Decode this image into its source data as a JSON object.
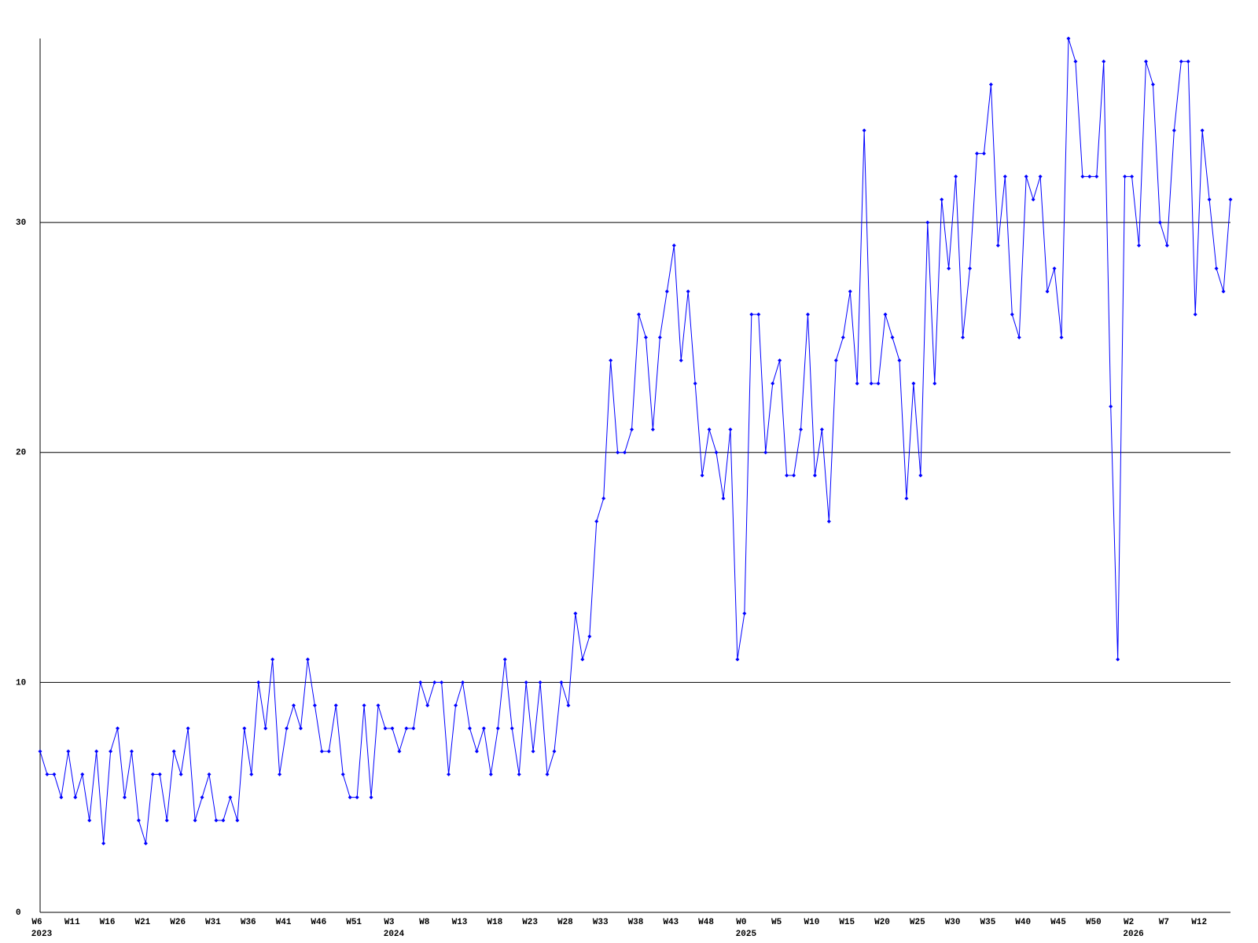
{
  "chart_data": {
    "type": "line",
    "categories": [
      "W6",
      null,
      null,
      null,
      null,
      "W11",
      null,
      null,
      null,
      null,
      "W16",
      null,
      null,
      null,
      null,
      "W21",
      null,
      null,
      null,
      null,
      "W26",
      null,
      null,
      null,
      null,
      "W31",
      null,
      null,
      null,
      null,
      "W36",
      null,
      null,
      null,
      null,
      "W41",
      null,
      null,
      null,
      null,
      "W46",
      null,
      null,
      null,
      null,
      "W51",
      null,
      null,
      null,
      null,
      "W3",
      null,
      null,
      null,
      null,
      "W8",
      null,
      null,
      null,
      null,
      "W13",
      null,
      null,
      null,
      null,
      "W18",
      null,
      null,
      null,
      null,
      "W23",
      null,
      null,
      null,
      null,
      "W28",
      null,
      null,
      null,
      null,
      "W33",
      null,
      null,
      null,
      null,
      "W38",
      null,
      null,
      null,
      null,
      "W43",
      null,
      null,
      null,
      null,
      "W48",
      null,
      null,
      null,
      null,
      "W0",
      null,
      null,
      null,
      null,
      "W5",
      null,
      null,
      null,
      null,
      "W10",
      null,
      null,
      null,
      null,
      "W15",
      null,
      null,
      null,
      null,
      "W20",
      null,
      null,
      null,
      null,
      "W25",
      null,
      null,
      null,
      null,
      "W30",
      null,
      null,
      null,
      null,
      "W35",
      null,
      null,
      null,
      null,
      "W40",
      null,
      null,
      null,
      null,
      "W45",
      null,
      null,
      null,
      null,
      "W50",
      null,
      null,
      null,
      null,
      "W2",
      null,
      null,
      null,
      null,
      "W7",
      null,
      null,
      null,
      null,
      "W12",
      null,
      null,
      null,
      null
    ],
    "year_labels": [
      "2023",
      null,
      null,
      null,
      null,
      null,
      null,
      null,
      null,
      null,
      null,
      null,
      null,
      null,
      null,
      null,
      null,
      null,
      null,
      null,
      null,
      null,
      null,
      null,
      null,
      null,
      null,
      null,
      null,
      null,
      null,
      null,
      null,
      null,
      null,
      null,
      null,
      null,
      null,
      null,
      null,
      null,
      null,
      null,
      null,
      null,
      null,
      null,
      null,
      null,
      "2024",
      null,
      null,
      null,
      null,
      null,
      null,
      null,
      null,
      null,
      null,
      null,
      null,
      null,
      null,
      null,
      null,
      null,
      null,
      null,
      null,
      null,
      null,
      null,
      null,
      null,
      null,
      null,
      null,
      null,
      null,
      null,
      null,
      null,
      null,
      null,
      null,
      null,
      null,
      null,
      null,
      null,
      null,
      null,
      null,
      null,
      null,
      null,
      null,
      null,
      "2025",
      null,
      null,
      null,
      null,
      null,
      null,
      null,
      null,
      null,
      null,
      null,
      null,
      null,
      null,
      null,
      null,
      null,
      null,
      null,
      null,
      null,
      null,
      null,
      null,
      null,
      null,
      null,
      null,
      null,
      null,
      null,
      null,
      null,
      null,
      null,
      null,
      null,
      null,
      null,
      null,
      null,
      null,
      null,
      null,
      null,
      null,
      null,
      null,
      null,
      null,
      null,
      null,
      null,
      null,
      "2026",
      null,
      null,
      null,
      null,
      null,
      null,
      null,
      null,
      null,
      null,
      null,
      null,
      null,
      null
    ],
    "series": [
      {
        "color": "#0000ff",
        "values": [
          7,
          6,
          6,
          5,
          7,
          5,
          6,
          4,
          7,
          3,
          7,
          8,
          5,
          7,
          4,
          3,
          6,
          6,
          4,
          7,
          6,
          8,
          4,
          5,
          6,
          4,
          4,
          5,
          4,
          8,
          6,
          10,
          8,
          11,
          6,
          8,
          9,
          8,
          11,
          9,
          7,
          7,
          9,
          6,
          5,
          5,
          9,
          5,
          9,
          8,
          8,
          7,
          8,
          8,
          10,
          9,
          10,
          10,
          6,
          9,
          10,
          8,
          7,
          8,
          6,
          8,
          11,
          8,
          6,
          10,
          7,
          10,
          6,
          7,
          10,
          9,
          13,
          11,
          12,
          17,
          18,
          24,
          20,
          20,
          21,
          26,
          25,
          21,
          25,
          27,
          29,
          24,
          27,
          23,
          19,
          21,
          20,
          18,
          21,
          11,
          13,
          26,
          26,
          20,
          23,
          24,
          19,
          19,
          21,
          26,
          19,
          21,
          17,
          24,
          25,
          27,
          23,
          34,
          23,
          23,
          26,
          25,
          24,
          18,
          23,
          19,
          30,
          23,
          31,
          28,
          32,
          25,
          28,
          33,
          33,
          36,
          29,
          32,
          26,
          25,
          32,
          31,
          32,
          27,
          28,
          25,
          38,
          37,
          32,
          32,
          32,
          37,
          22,
          11,
          32,
          32,
          29,
          37,
          36,
          30,
          29,
          34,
          37,
          37,
          26,
          34,
          31,
          28,
          27,
          31
        ]
      }
    ],
    "ylim": [
      0,
      38
    ],
    "yticks": [
      0,
      10,
      20,
      30
    ],
    "grid": true
  }
}
